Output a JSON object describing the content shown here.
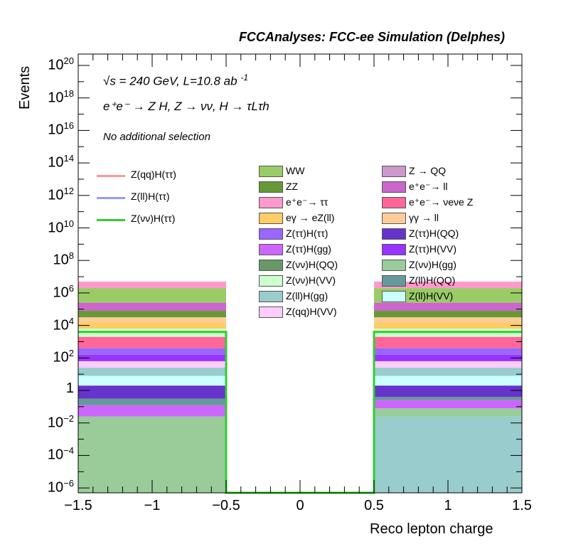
{
  "header": "FCCAnalyses: FCC-ee Simulation (Delphes)",
  "info": {
    "energy_line": "√s = 240 GeV, L=10.8 ab",
    "energy_sup": "-1",
    "process_line": "e⁺e⁻ → Z H, Z → νν, H → τLτh",
    "selection_line": "No additional selection"
  },
  "legend": {
    "lines": [
      {
        "label": "Z(qq)H(ττ)",
        "color": "#ff9999"
      },
      {
        "label": "Z(ll)H(ττ)",
        "color": "#9999ff"
      },
      {
        "label": "Z(νν)H(ττ)",
        "color": "#33cc33"
      }
    ],
    "boxes_col1": [
      {
        "label": "WW",
        "color": "#99cc66"
      },
      {
        "label": "ZZ",
        "color": "#669933"
      },
      {
        "label": "e⁺e⁻→ ττ",
        "color": "#ff99cc"
      },
      {
        "label": "eγ → eZ(ll)",
        "color": "#ffcc66"
      },
      {
        "label": "Z(ττ)H(ττ)",
        "color": "#9966ff"
      },
      {
        "label": "Z(ττ)H(gg)",
        "color": "#cc66ff"
      },
      {
        "label": "Z(νν)H(QQ)",
        "color": "#669966"
      },
      {
        "label": "Z(νν)H(VV)",
        "color": "#ccffcc"
      },
      {
        "label": "Z(ll)H(gg)",
        "color": "#99cccc"
      },
      {
        "label": "Z(qq)H(VV)",
        "color": "#ffccff"
      }
    ],
    "boxes_col2": [
      {
        "label": "Z → QQ",
        "color": "#cc99cc"
      },
      {
        "label": "e⁺e⁻→ ll",
        "color": "#cc66cc"
      },
      {
        "label": "e⁺e⁻→ νeνe Z",
        "color": "#ff6699"
      },
      {
        "label": "γγ → ll",
        "color": "#ffcc99"
      },
      {
        "label": "Z(ττ)H(QQ)",
        "color": "#6633cc"
      },
      {
        "label": "Z(ττ)H(VV)",
        "color": "#9933ff"
      },
      {
        "label": "Z(νν)H(gg)",
        "color": "#99cc99"
      },
      {
        "label": "Z(ll)H(QQ)",
        "color": "#669999"
      },
      {
        "label": "Z(ll)H(VV)",
        "color": "#ccffff"
      }
    ]
  },
  "chart_data": {
    "type": "bar",
    "title": "",
    "xlabel": "Reco lepton charge",
    "ylabel": "Events",
    "xlim": [
      -1.5,
      1.5
    ],
    "ylim_log10": [
      -6.3,
      20.7
    ],
    "log_y": true,
    "x_ticks": [
      "−1.5",
      "−1",
      "−0.5",
      "0",
      "0.5",
      "1",
      "1.5"
    ],
    "y_ticks": [
      {
        "exp": -6,
        "label": "10",
        "sup": "−6"
      },
      {
        "exp": -4,
        "label": "10",
        "sup": "−4"
      },
      {
        "exp": -2,
        "label": "10",
        "sup": "−2"
      },
      {
        "exp": 0,
        "label": "1",
        "sup": ""
      },
      {
        "exp": 2,
        "label": "10",
        "sup": "2"
      },
      {
        "exp": 4,
        "label": "10",
        "sup": "4"
      },
      {
        "exp": 6,
        "label": "10",
        "sup": "6"
      },
      {
        "exp": 8,
        "label": "10",
        "sup": "8"
      },
      {
        "exp": 10,
        "label": "10",
        "sup": "10"
      },
      {
        "exp": 12,
        "label": "10",
        "sup": "12"
      },
      {
        "exp": 14,
        "label": "10",
        "sup": "14"
      },
      {
        "exp": 16,
        "label": "10",
        "sup": "16"
      },
      {
        "exp": 18,
        "label": "10",
        "sup": "18"
      },
      {
        "exp": 20,
        "label": "10",
        "sup": "20"
      }
    ],
    "bins": [
      {
        "x": [
          -1.5,
          -0.5
        ],
        "stack_bands": [
          {
            "lo": -6.3,
            "hi": -1.6,
            "color": "#99cc99"
          },
          {
            "lo": -1.6,
            "hi": -0.9,
            "color": "#cc66ff"
          },
          {
            "lo": -0.9,
            "hi": -0.5,
            "color": "#669999"
          },
          {
            "lo": -0.5,
            "hi": 0.3,
            "color": "#6633cc"
          },
          {
            "lo": 0.3,
            "hi": 0.9,
            "color": "#ccffff"
          },
          {
            "lo": 0.9,
            "hi": 1.4,
            "color": "#99cccc"
          },
          {
            "lo": 1.4,
            "hi": 1.8,
            "color": "#ffccff"
          },
          {
            "lo": 1.8,
            "hi": 2.2,
            "color": "#9933ff"
          },
          {
            "lo": 2.2,
            "hi": 2.6,
            "color": "#9966ff"
          },
          {
            "lo": 2.6,
            "hi": 3.3,
            "color": "#ff6699"
          },
          {
            "lo": 3.3,
            "hi": 3.8,
            "color": "#ccffcc"
          },
          {
            "lo": 3.8,
            "hi": 4.2,
            "color": "#ffcc66"
          },
          {
            "lo": 4.2,
            "hi": 4.5,
            "color": "#ffcc99"
          },
          {
            "lo": 4.5,
            "hi": 4.9,
            "color": "#669933"
          },
          {
            "lo": 4.9,
            "hi": 5.4,
            "color": "#cc66cc"
          },
          {
            "lo": 5.4,
            "hi": 6.3,
            "color": "#99cc66"
          },
          {
            "lo": 6.3,
            "hi": 6.7,
            "color": "#ff99cc"
          }
        ]
      },
      {
        "x": [
          0.5,
          1.5
        ],
        "stack_bands": [
          {
            "lo": -6.3,
            "hi": -1.6,
            "color": "#99cccc"
          },
          {
            "lo": -1.6,
            "hi": -1.1,
            "color": "#99cc99"
          },
          {
            "lo": -1.1,
            "hi": -0.6,
            "color": "#cc66ff"
          },
          {
            "lo": -0.6,
            "hi": -0.4,
            "color": "#669999"
          },
          {
            "lo": -0.4,
            "hi": 0.3,
            "color": "#6633cc"
          },
          {
            "lo": 0.3,
            "hi": 0.9,
            "color": "#ccffff"
          },
          {
            "lo": 0.9,
            "hi": 1.4,
            "color": "#99cccc"
          },
          {
            "lo": 1.4,
            "hi": 1.8,
            "color": "#ffccff"
          },
          {
            "lo": 1.8,
            "hi": 2.2,
            "color": "#9933ff"
          },
          {
            "lo": 2.2,
            "hi": 2.6,
            "color": "#9966ff"
          },
          {
            "lo": 2.6,
            "hi": 3.3,
            "color": "#ff6699"
          },
          {
            "lo": 3.3,
            "hi": 3.8,
            "color": "#ccffcc"
          },
          {
            "lo": 3.8,
            "hi": 4.2,
            "color": "#ffcc66"
          },
          {
            "lo": 4.2,
            "hi": 4.5,
            "color": "#ffcc99"
          },
          {
            "lo": 4.5,
            "hi": 4.9,
            "color": "#669933"
          },
          {
            "lo": 4.9,
            "hi": 5.4,
            "color": "#cc66cc"
          },
          {
            "lo": 5.4,
            "hi": 6.3,
            "color": "#99cc66"
          },
          {
            "lo": 6.3,
            "hi": 6.7,
            "color": "#ff99cc"
          }
        ]
      }
    ],
    "signal_line": {
      "name": "Z(νν)H(ττ)",
      "color": "#33cc33",
      "points": [
        [
          -1.5,
          3.6
        ],
        [
          -0.5,
          3.6
        ],
        [
          -0.5,
          -6.3
        ],
        [
          0.5,
          -6.3
        ],
        [
          0.5,
          3.6
        ],
        [
          1.5,
          3.6
        ]
      ]
    }
  }
}
